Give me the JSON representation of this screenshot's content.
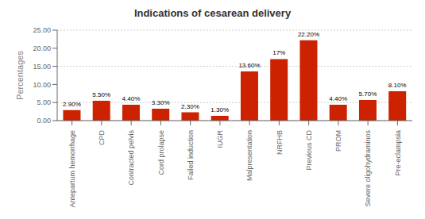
{
  "chart_data": {
    "type": "bar",
    "title": "Indications of cesarean delivery",
    "ylabel": "Percentages",
    "categories": [
      "Antepartum hemorrhage",
      "CPD",
      "Contracted pelvis",
      "Cord prolapse",
      "Failed induction",
      "IUGR",
      "Malpresentation",
      "NRFHB",
      "Previous CD",
      "PROM",
      "Severe oligohydraminos",
      "Pre-eclampsia"
    ],
    "values": [
      2.9,
      5.5,
      4.4,
      3.3,
      2.3,
      1.3,
      13.6,
      17.0,
      22.2,
      4.4,
      5.7,
      8.1
    ],
    "value_labels": [
      "2.90%",
      "5.50%",
      "4.40%",
      "3.30%",
      "2.30%",
      "1.30%",
      "13.60%",
      "17%",
      "22.20%",
      "4.40%",
      "5.70%",
      "8.10%"
    ],
    "data_labels": true,
    "color": "#cc2200",
    "ylim": [
      0,
      25
    ],
    "yticks": [
      {
        "value": 0,
        "label": "0.00"
      },
      {
        "value": 5,
        "label": "5.00"
      },
      {
        "value": 10,
        "label": "10.00"
      },
      {
        "value": 15,
        "label": "15.00"
      },
      {
        "value": 20,
        "label": "20.00"
      },
      {
        "value": 25,
        "label": "25.00"
      }
    ],
    "grid": true
  }
}
